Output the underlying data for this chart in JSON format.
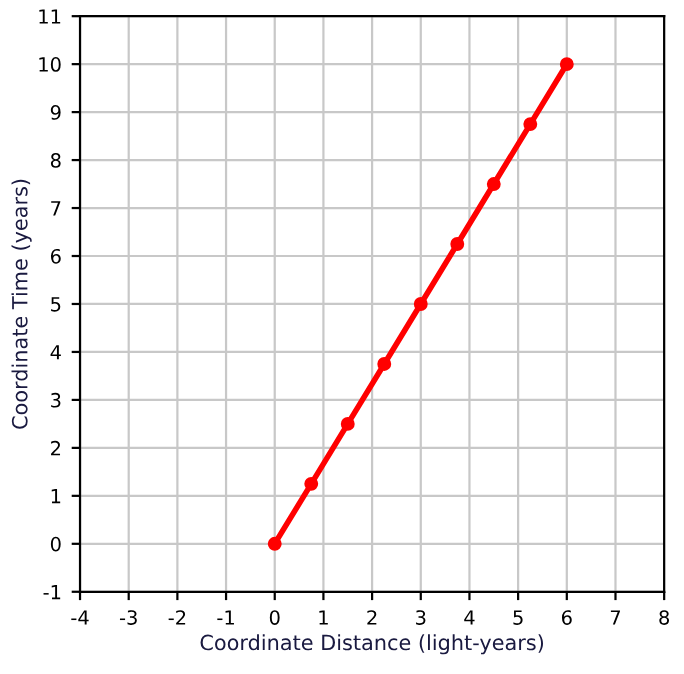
{
  "chart_data": {
    "type": "line",
    "xlabel": "Coordinate Distance (light-years)",
    "ylabel": "Coordinate Time (years)",
    "x": [
      0,
      0.75,
      1.5,
      2.25,
      3,
      3.75,
      4.5,
      5.25,
      6
    ],
    "series": [
      {
        "color": "#ff0000",
        "values": [
          0,
          1.25,
          2.5,
          3.75,
          5,
          6.25,
          7.5,
          8.75,
          10
        ]
      }
    ],
    "xlim": [
      -4,
      8
    ],
    "xticks": [
      -4,
      -3,
      -2,
      -1,
      0,
      1,
      2,
      3,
      4,
      5,
      6,
      7,
      8
    ],
    "ylim": [
      -1,
      11
    ],
    "yticks": [
      -1,
      0,
      1,
      2,
      3,
      4,
      5,
      6,
      7,
      8,
      9,
      10,
      11
    ],
    "grid": true,
    "marker": "circle",
    "line_style": "solid"
  }
}
